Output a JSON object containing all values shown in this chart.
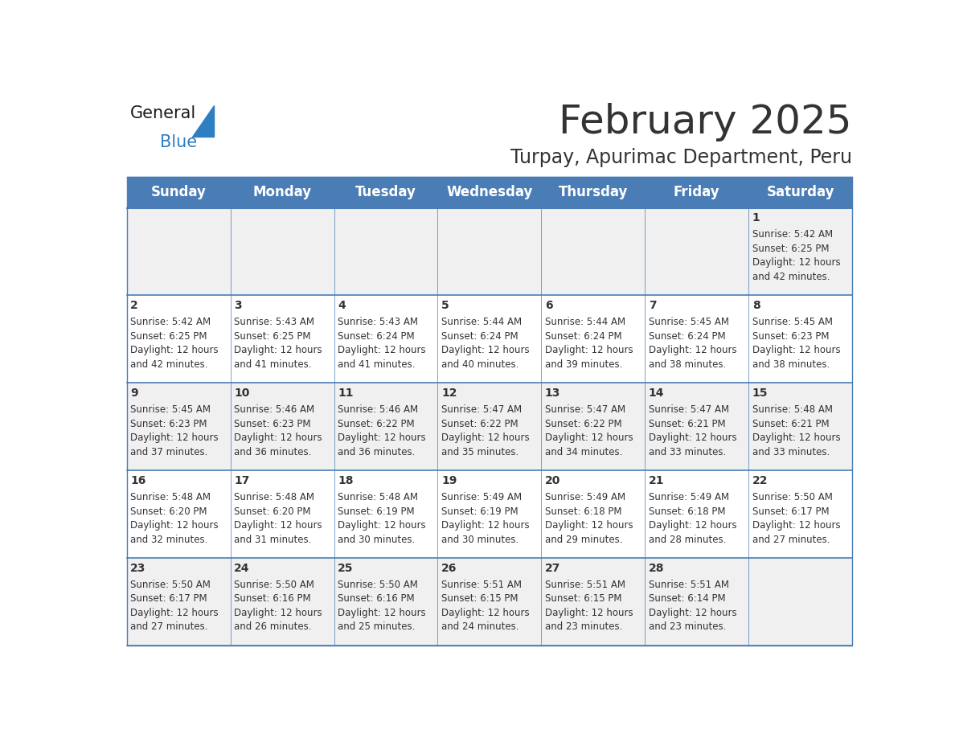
{
  "title": "February 2025",
  "subtitle": "Turpay, Apurimac Department, Peru",
  "header_color": "#4a7db5",
  "header_text_color": "#ffffff",
  "cell_bg_light": "#f0f0f0",
  "cell_bg_white": "#ffffff",
  "border_color": "#4a7db5",
  "divider_color": "#4a7db5",
  "text_color": "#333333",
  "days_of_week": [
    "Sunday",
    "Monday",
    "Tuesday",
    "Wednesday",
    "Thursday",
    "Friday",
    "Saturday"
  ],
  "weeks": [
    [
      {
        "day": null,
        "text": ""
      },
      {
        "day": null,
        "text": ""
      },
      {
        "day": null,
        "text": ""
      },
      {
        "day": null,
        "text": ""
      },
      {
        "day": null,
        "text": ""
      },
      {
        "day": null,
        "text": ""
      },
      {
        "day": 1,
        "text": "Sunrise: 5:42 AM\nSunset: 6:25 PM\nDaylight: 12 hours\nand 42 minutes."
      }
    ],
    [
      {
        "day": 2,
        "text": "Sunrise: 5:42 AM\nSunset: 6:25 PM\nDaylight: 12 hours\nand 42 minutes."
      },
      {
        "day": 3,
        "text": "Sunrise: 5:43 AM\nSunset: 6:25 PM\nDaylight: 12 hours\nand 41 minutes."
      },
      {
        "day": 4,
        "text": "Sunrise: 5:43 AM\nSunset: 6:24 PM\nDaylight: 12 hours\nand 41 minutes."
      },
      {
        "day": 5,
        "text": "Sunrise: 5:44 AM\nSunset: 6:24 PM\nDaylight: 12 hours\nand 40 minutes."
      },
      {
        "day": 6,
        "text": "Sunrise: 5:44 AM\nSunset: 6:24 PM\nDaylight: 12 hours\nand 39 minutes."
      },
      {
        "day": 7,
        "text": "Sunrise: 5:45 AM\nSunset: 6:24 PM\nDaylight: 12 hours\nand 38 minutes."
      },
      {
        "day": 8,
        "text": "Sunrise: 5:45 AM\nSunset: 6:23 PM\nDaylight: 12 hours\nand 38 minutes."
      }
    ],
    [
      {
        "day": 9,
        "text": "Sunrise: 5:45 AM\nSunset: 6:23 PM\nDaylight: 12 hours\nand 37 minutes."
      },
      {
        "day": 10,
        "text": "Sunrise: 5:46 AM\nSunset: 6:23 PM\nDaylight: 12 hours\nand 36 minutes."
      },
      {
        "day": 11,
        "text": "Sunrise: 5:46 AM\nSunset: 6:22 PM\nDaylight: 12 hours\nand 36 minutes."
      },
      {
        "day": 12,
        "text": "Sunrise: 5:47 AM\nSunset: 6:22 PM\nDaylight: 12 hours\nand 35 minutes."
      },
      {
        "day": 13,
        "text": "Sunrise: 5:47 AM\nSunset: 6:22 PM\nDaylight: 12 hours\nand 34 minutes."
      },
      {
        "day": 14,
        "text": "Sunrise: 5:47 AM\nSunset: 6:21 PM\nDaylight: 12 hours\nand 33 minutes."
      },
      {
        "day": 15,
        "text": "Sunrise: 5:48 AM\nSunset: 6:21 PM\nDaylight: 12 hours\nand 33 minutes."
      }
    ],
    [
      {
        "day": 16,
        "text": "Sunrise: 5:48 AM\nSunset: 6:20 PM\nDaylight: 12 hours\nand 32 minutes."
      },
      {
        "day": 17,
        "text": "Sunrise: 5:48 AM\nSunset: 6:20 PM\nDaylight: 12 hours\nand 31 minutes."
      },
      {
        "day": 18,
        "text": "Sunrise: 5:48 AM\nSunset: 6:19 PM\nDaylight: 12 hours\nand 30 minutes."
      },
      {
        "day": 19,
        "text": "Sunrise: 5:49 AM\nSunset: 6:19 PM\nDaylight: 12 hours\nand 30 minutes."
      },
      {
        "day": 20,
        "text": "Sunrise: 5:49 AM\nSunset: 6:18 PM\nDaylight: 12 hours\nand 29 minutes."
      },
      {
        "day": 21,
        "text": "Sunrise: 5:49 AM\nSunset: 6:18 PM\nDaylight: 12 hours\nand 28 minutes."
      },
      {
        "day": 22,
        "text": "Sunrise: 5:50 AM\nSunset: 6:17 PM\nDaylight: 12 hours\nand 27 minutes."
      }
    ],
    [
      {
        "day": 23,
        "text": "Sunrise: 5:50 AM\nSunset: 6:17 PM\nDaylight: 12 hours\nand 27 minutes."
      },
      {
        "day": 24,
        "text": "Sunrise: 5:50 AM\nSunset: 6:16 PM\nDaylight: 12 hours\nand 26 minutes."
      },
      {
        "day": 25,
        "text": "Sunrise: 5:50 AM\nSunset: 6:16 PM\nDaylight: 12 hours\nand 25 minutes."
      },
      {
        "day": 26,
        "text": "Sunrise: 5:51 AM\nSunset: 6:15 PM\nDaylight: 12 hours\nand 24 minutes."
      },
      {
        "day": 27,
        "text": "Sunrise: 5:51 AM\nSunset: 6:15 PM\nDaylight: 12 hours\nand 23 minutes."
      },
      {
        "day": 28,
        "text": "Sunrise: 5:51 AM\nSunset: 6:14 PM\nDaylight: 12 hours\nand 23 minutes."
      },
      {
        "day": null,
        "text": ""
      }
    ]
  ],
  "logo_general_color": "#1a1a1a",
  "logo_blue_color": "#2e7ec2",
  "logo_triangle_color": "#2e7ec2",
  "title_fontsize": 36,
  "subtitle_fontsize": 17,
  "header_fontsize": 12,
  "day_number_fontsize": 10,
  "cell_text_fontsize": 8.5,
  "logo_fontsize": 15
}
